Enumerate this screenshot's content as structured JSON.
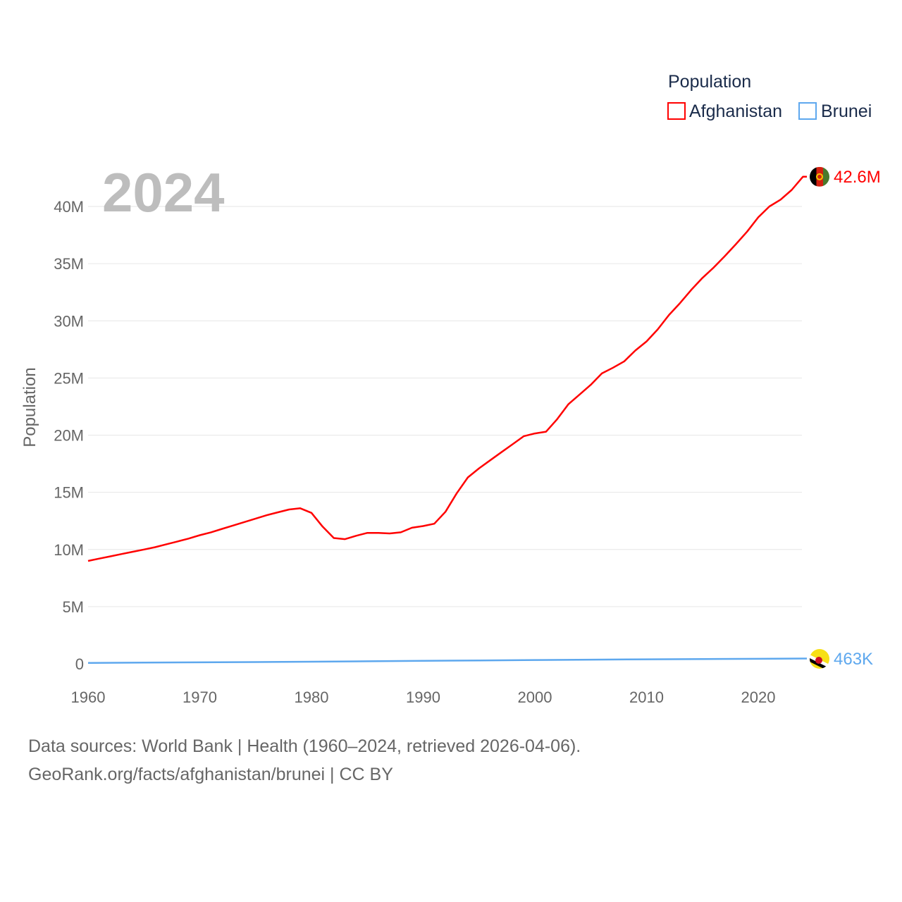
{
  "chart_data": {
    "type": "line",
    "year_label": "2024",
    "ylabel": "Population",
    "xlim": [
      1960,
      2024
    ],
    "ylim": [
      0,
      42600000
    ],
    "x_ticks": [
      "1960",
      "1970",
      "1980",
      "1990",
      "2000",
      "2010",
      "2020"
    ],
    "y_ticks": [
      {
        "v": 0,
        "label": "0"
      },
      {
        "v": 5000000,
        "label": "5M"
      },
      {
        "v": 10000000,
        "label": "10M"
      },
      {
        "v": 15000000,
        "label": "15M"
      },
      {
        "v": 20000000,
        "label": "20M"
      },
      {
        "v": 25000000,
        "label": "25M"
      },
      {
        "v": 30000000,
        "label": "30M"
      },
      {
        "v": 35000000,
        "label": "35M"
      },
      {
        "v": 40000000,
        "label": "40M"
      }
    ],
    "legend": {
      "title": "Population",
      "position": "top-right"
    },
    "series": [
      {
        "name": "Afghanistan",
        "color": "#ff0000",
        "end_label": "42.6M",
        "flag": "afghanistan-flag-icon",
        "x": [
          1960,
          1961,
          1962,
          1963,
          1964,
          1965,
          1966,
          1967,
          1968,
          1969,
          1970,
          1971,
          1972,
          1973,
          1974,
          1975,
          1976,
          1977,
          1978,
          1979,
          1980,
          1981,
          1982,
          1983,
          1984,
          1985,
          1986,
          1987,
          1988,
          1989,
          1990,
          1991,
          1992,
          1993,
          1994,
          1995,
          1996,
          1997,
          1998,
          1999,
          2000,
          2001,
          2002,
          2003,
          2004,
          2005,
          2006,
          2007,
          2008,
          2009,
          2010,
          2011,
          2012,
          2013,
          2014,
          2015,
          2016,
          2017,
          2018,
          2019,
          2020,
          2021,
          2022,
          2023,
          2024
        ],
        "values_millions": [
          9.0,
          9.2,
          9.4,
          9.6,
          9.8,
          10.0,
          10.2,
          10.45,
          10.7,
          10.95,
          11.25,
          11.5,
          11.8,
          12.1,
          12.4,
          12.7,
          13.0,
          13.25,
          13.5,
          13.6,
          13.2,
          12.0,
          11.0,
          10.9,
          11.2,
          11.45,
          11.45,
          11.4,
          11.5,
          11.9,
          12.05,
          12.25,
          13.3,
          14.9,
          16.3,
          17.1,
          17.8,
          18.5,
          19.2,
          19.9,
          20.15,
          20.3,
          21.4,
          22.7,
          23.55,
          24.4,
          25.4,
          25.9,
          26.45,
          27.4,
          28.2,
          29.25,
          30.5,
          31.55,
          32.7,
          33.75,
          34.65,
          35.65,
          36.7,
          37.8,
          39.05,
          40.0,
          40.6,
          41.45,
          42.6
        ]
      },
      {
        "name": "Brunei",
        "color": "#5ea8ee",
        "end_label": "463K",
        "flag": "brunei-flag-icon",
        "x": [
          1960,
          1965,
          1970,
          1975,
          1980,
          1985,
          1990,
          1995,
          2000,
          2005,
          2010,
          2015,
          2020,
          2024
        ],
        "values_millions": [
          0.082,
          0.104,
          0.13,
          0.157,
          0.187,
          0.222,
          0.259,
          0.297,
          0.333,
          0.366,
          0.397,
          0.418,
          0.438,
          0.463
        ]
      }
    ]
  },
  "footer": {
    "line1": "Data sources: World Bank | Health (1960–2024, retrieved 2026-04-06).",
    "line2": "GeoRank.org/facts/afghanistan/brunei | CC BY"
  }
}
